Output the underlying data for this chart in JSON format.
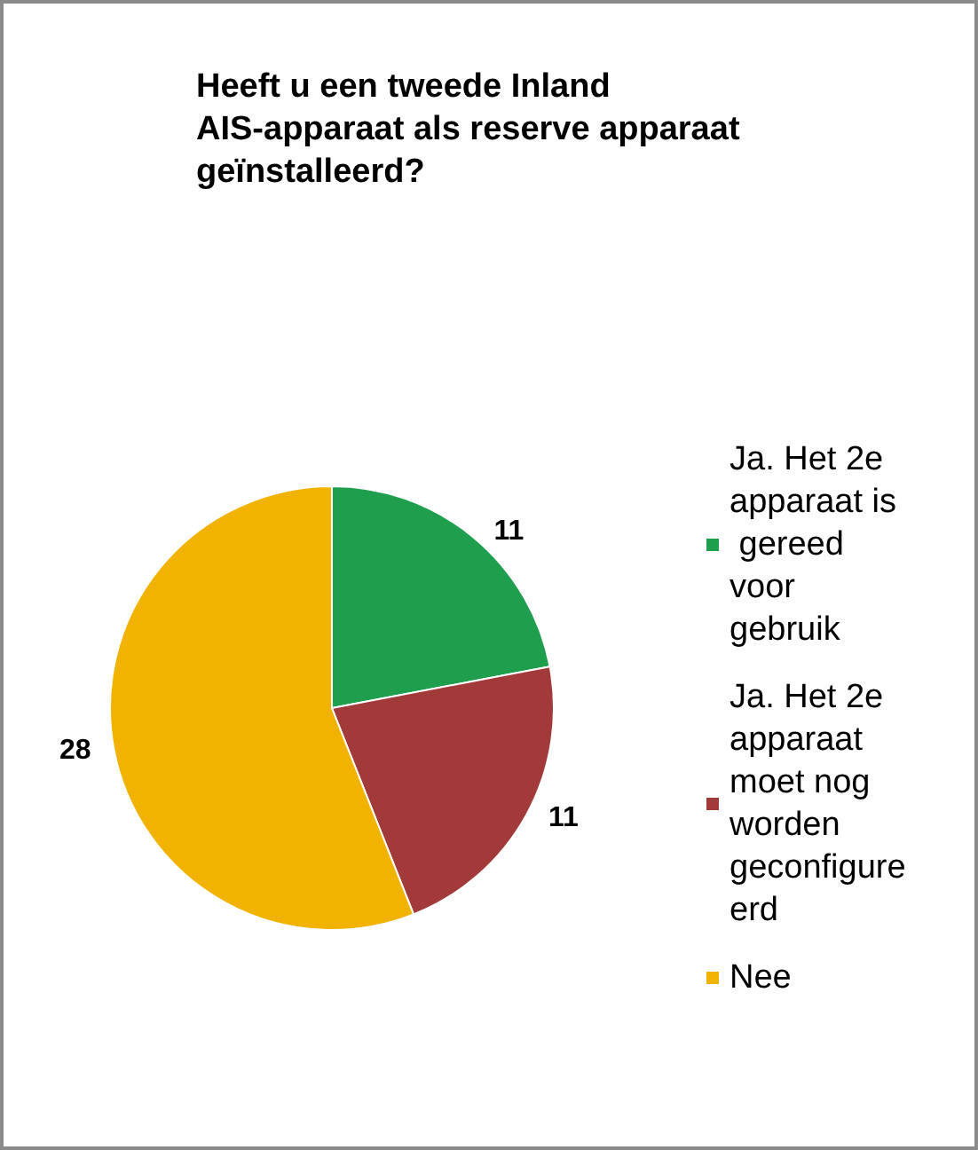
{
  "chart_data": {
    "type": "pie",
    "title": "Heeft u een tweede Inland AIS-apparaat als reserve apparaat geïnstalleerd?",
    "categories": [
      "Ja. Het 2e apparaat is gereed voor gebruik",
      "Ja. Het 2e apparaat moet nog worden geconfigureerd",
      "Nee"
    ],
    "values": [
      11,
      11,
      28
    ],
    "colors": [
      "#1f9e4e",
      "#a33a3a",
      "#f2b300"
    ],
    "data_labels": true,
    "legend": "right"
  }
}
